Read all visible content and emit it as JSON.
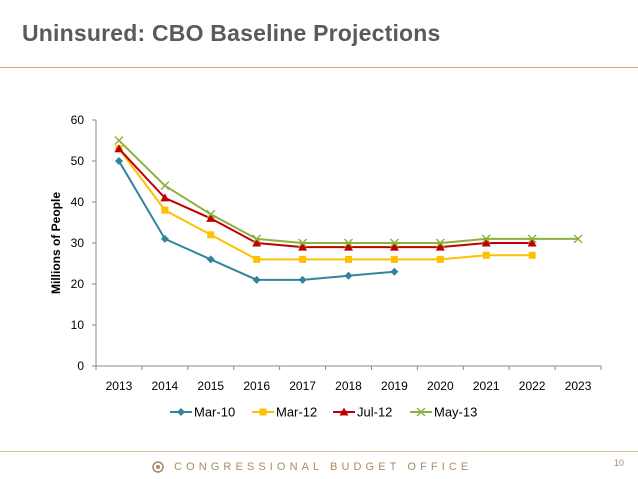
{
  "header": {
    "title": "Uninsured:  CBO Baseline Projections"
  },
  "footer": {
    "organization": "CONGRESSIONAL BUDGET OFFICE",
    "page_number": "10"
  },
  "colors": {
    "title": "#5a5a5a",
    "rule": "#c9a77a",
    "footer_text": "#a88b66"
  },
  "chart_data": {
    "type": "line",
    "title": "",
    "xlabel": "",
    "ylabel": "Millions of People",
    "x": [
      "2013",
      "2014",
      "2015",
      "2016",
      "2017",
      "2018",
      "2019",
      "2020",
      "2021",
      "2022",
      "2023"
    ],
    "ylim": [
      0,
      60
    ],
    "yticks": [
      0,
      10,
      20,
      30,
      40,
      50,
      60
    ],
    "grid": false,
    "legend_position": "bottom",
    "series": [
      {
        "name": "Mar-10",
        "color": "#31859b",
        "marker": "diamond",
        "values": [
          50,
          31,
          26,
          21,
          21,
          22,
          23,
          null,
          null,
          null,
          null
        ]
      },
      {
        "name": "Mar-12",
        "color": "#ffc000",
        "marker": "square",
        "values": [
          53,
          38,
          32,
          26,
          26,
          26,
          26,
          26,
          27,
          27,
          null
        ]
      },
      {
        "name": "Jul-12",
        "color": "#c00000",
        "marker": "triangle",
        "values": [
          53,
          41,
          36,
          30,
          29,
          29,
          29,
          29,
          30,
          30,
          null
        ]
      },
      {
        "name": "May-13",
        "color": "#8db03f",
        "marker": "x",
        "values": [
          55,
          44,
          37,
          31,
          30,
          30,
          30,
          30,
          31,
          31,
          31
        ]
      }
    ]
  }
}
